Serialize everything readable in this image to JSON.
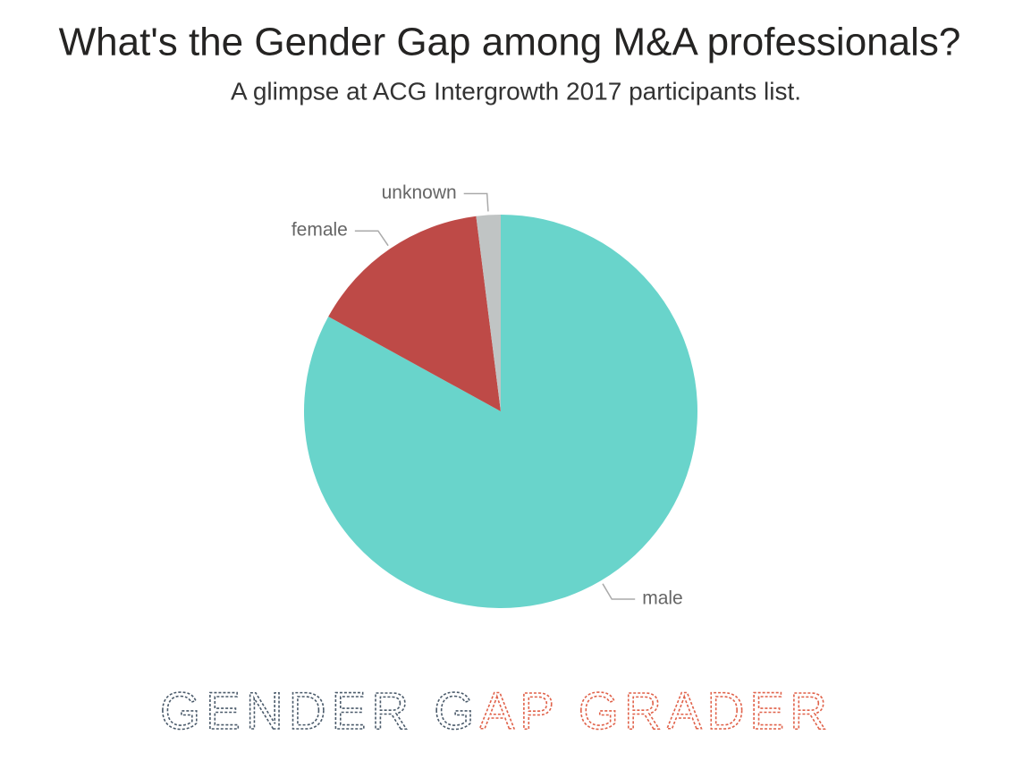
{
  "chart_data": {
    "type": "pie",
    "title": "What's the Gender Gap among M&A professionals?",
    "subtitle": "A glimpse at ACG Intergrowth 2017 participants list.",
    "categories": [
      "male",
      "female",
      "unknown"
    ],
    "values": [
      83,
      15,
      2
    ],
    "colors": [
      "#69d4cb",
      "#be4a47",
      "#c0c4c4"
    ]
  },
  "logo": {
    "parts": [
      {
        "text": "GENDER G",
        "color": "#4a5a6a"
      },
      {
        "text": "AP GRADER",
        "color": "#e0624a"
      }
    ]
  }
}
